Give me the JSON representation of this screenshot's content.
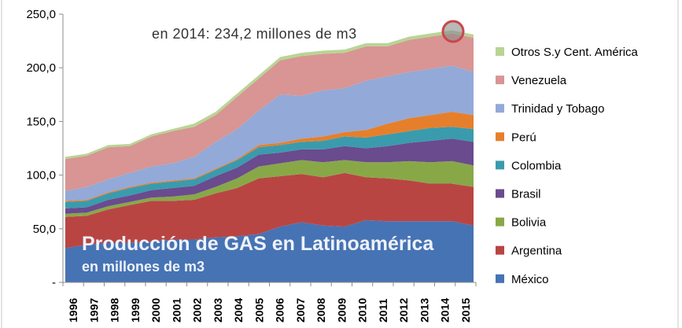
{
  "chart_data": {
    "type": "area",
    "stacked": true,
    "title": "Producción de GAS en Latinoamérica",
    "subtitle": "en millones de m3",
    "annotation": "en 2014: 234,2 millones de m3",
    "x": [
      "1996",
      "1997",
      "1998",
      "1999",
      "2000",
      "2001",
      "2002",
      "2003",
      "2004",
      "2005",
      "2006",
      "2007",
      "2008",
      "2009",
      "2010",
      "2011",
      "2012",
      "2013",
      "2014",
      "2015"
    ],
    "ylim": [
      0,
      250
    ],
    "yticks": [
      0,
      50,
      100,
      150,
      200,
      250
    ],
    "ytick_labels": [
      "-",
      "50,0",
      "100,0",
      "150,0",
      "200,0",
      "250,0"
    ],
    "legend_position": "right",
    "grid": false,
    "series": [
      {
        "name": "México",
        "color": "#4673b4",
        "values": [
          32,
          35,
          37,
          37,
          38,
          40,
          40,
          42,
          43,
          45,
          52,
          56,
          53,
          52,
          58,
          57,
          57,
          57,
          57,
          53
        ]
      },
      {
        "name": "Argentina",
        "color": "#b94543",
        "values": [
          29,
          27,
          31,
          35,
          38,
          36,
          37,
          41,
          45,
          52,
          47,
          45,
          45,
          50,
          40,
          40,
          38,
          35,
          35,
          36
        ]
      },
      {
        "name": "Bolivia",
        "color": "#88a848",
        "values": [
          3,
          3,
          3,
          3,
          3,
          4,
          5,
          6,
          9,
          11,
          12,
          13,
          14,
          12,
          14,
          15,
          18,
          20,
          21,
          20
        ]
      },
      {
        "name": "Brasil",
        "color": "#6a4b8e",
        "values": [
          5,
          5,
          6,
          6,
          7,
          8,
          8,
          10,
          10,
          11,
          10,
          10,
          12,
          13,
          13,
          15,
          17,
          20,
          21,
          22
        ]
      },
      {
        "name": "Colombia",
        "color": "#3a9bad",
        "values": [
          6,
          6,
          6,
          7,
          6,
          6,
          6,
          6,
          7,
          7,
          7,
          7,
          8,
          9,
          10,
          11,
          11,
          12,
          11,
          12
        ]
      },
      {
        "name": "Perú",
        "color": "#e67f2b",
        "values": [
          1,
          1,
          1,
          1,
          1,
          1,
          1,
          1,
          1,
          2,
          2,
          3,
          4,
          4,
          7,
          10,
          12,
          12,
          14,
          13
        ]
      },
      {
        "name": "Trinidad y Tobago",
        "color": "#93a9d8",
        "values": [
          9,
          12,
          12,
          13,
          15,
          16,
          20,
          25,
          28,
          32,
          45,
          40,
          43,
          41,
          46,
          44,
          43,
          43,
          43,
          40
        ]
      },
      {
        "name": "Venezuela",
        "color": "#d89593",
        "values": [
          30,
          29,
          30,
          25,
          28,
          30,
          28,
          25,
          30,
          30,
          32,
          37,
          34,
          33,
          32,
          28,
          30,
          30,
          30,
          32
        ]
      },
      {
        "name": "Otros S.y Cent. América",
        "color": "#b8d594",
        "values": [
          2,
          2,
          2,
          2,
          2,
          2,
          3,
          3,
          3,
          3,
          3,
          3,
          3,
          3,
          3,
          3,
          3,
          3,
          3,
          3
        ]
      }
    ]
  }
}
